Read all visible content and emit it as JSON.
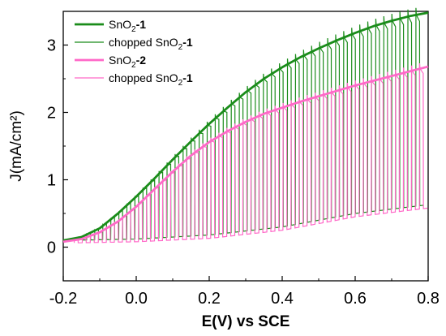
{
  "chart_data": {
    "type": "line",
    "xlabel": "E(V) vs SCE",
    "ylabel": "J(mA/cm²)",
    "xlim": [
      -0.2,
      0.8
    ],
    "ylim": [
      -0.5,
      3.5
    ],
    "xticks": [
      -0.2,
      0.0,
      0.2,
      0.4,
      0.6,
      0.8
    ],
    "xtick_labels": [
      "-0.2",
      "0.0",
      "0.2",
      "0.4",
      "0.6",
      "0.8"
    ],
    "yticks": [
      0,
      1,
      2,
      3
    ],
    "ytick_labels": [
      "0",
      "1",
      "2",
      "3"
    ],
    "grid": false,
    "legend_position": "top-left",
    "legend": [
      {
        "base": "SnO",
        "sub": "2",
        "suffix": "-1",
        "color": "#1a8c1a",
        "style": "thick"
      },
      {
        "base": "chopped SnO",
        "sub": "2",
        "suffix": "-1",
        "color": "#1a8c1a",
        "style": "thin"
      },
      {
        "base": "SnO",
        "sub": "2",
        "suffix": "-2",
        "color": "#ff69c8",
        "style": "thick"
      },
      {
        "base": "chopped SnO",
        "sub": "2",
        "suffix": "-1",
        "color": "#ff69c8",
        "style": "thin"
      }
    ],
    "series": [
      {
        "name": "SnO2-1",
        "color": "#1a8c1a",
        "style": "thick",
        "x": [
          -0.2,
          -0.15,
          -0.1,
          -0.05,
          0.0,
          0.05,
          0.1,
          0.15,
          0.2,
          0.25,
          0.3,
          0.35,
          0.4,
          0.45,
          0.5,
          0.55,
          0.6,
          0.65,
          0.7,
          0.75,
          0.8
        ],
        "y": [
          0.1,
          0.15,
          0.28,
          0.5,
          0.75,
          1.02,
          1.3,
          1.57,
          1.83,
          2.07,
          2.3,
          2.5,
          2.67,
          2.82,
          2.95,
          3.07,
          3.18,
          3.28,
          3.36,
          3.43,
          3.48
        ]
      },
      {
        "name": "chopped SnO2-1",
        "color": "#1a8c1a",
        "style": "thin",
        "dark_x": [
          -0.2,
          0.0,
          0.2,
          0.4,
          0.6,
          0.8
        ],
        "dark_y": [
          0.1,
          0.12,
          0.18,
          0.3,
          0.5,
          0.63
        ],
        "light_x": [
          -0.2,
          -0.15,
          -0.1,
          -0.05,
          0.0,
          0.05,
          0.1,
          0.15,
          0.2,
          0.25,
          0.3,
          0.35,
          0.4,
          0.45,
          0.5,
          0.55,
          0.6,
          0.65,
          0.7,
          0.75,
          0.8
        ],
        "light_y": [
          0.1,
          0.15,
          0.28,
          0.5,
          0.75,
          1.02,
          1.3,
          1.57,
          1.83,
          2.07,
          2.3,
          2.5,
          2.67,
          2.82,
          2.95,
          3.07,
          3.18,
          3.28,
          3.36,
          3.43,
          3.48
        ],
        "pulse_x_start": -0.18,
        "pulse_x_end": 0.79,
        "pulse_period": 0.022
      },
      {
        "name": "SnO2-2",
        "color": "#ff69c8",
        "style": "thick",
        "x": [
          -0.2,
          -0.15,
          -0.1,
          -0.05,
          0.0,
          0.05,
          0.1,
          0.15,
          0.2,
          0.25,
          0.3,
          0.35,
          0.4,
          0.45,
          0.5,
          0.55,
          0.6,
          0.65,
          0.7,
          0.75,
          0.8
        ],
        "y": [
          0.08,
          0.12,
          0.22,
          0.38,
          0.6,
          0.86,
          1.12,
          1.36,
          1.56,
          1.72,
          1.86,
          1.98,
          2.07,
          2.16,
          2.24,
          2.32,
          2.4,
          2.47,
          2.54,
          2.61,
          2.68
        ]
      },
      {
        "name": "chopped SnO2-1",
        "color": "#ff69c8",
        "style": "thin",
        "dark_x": [
          -0.2,
          0.0,
          0.2,
          0.4,
          0.6,
          0.8
        ],
        "dark_y": [
          0.06,
          0.08,
          0.13,
          0.25,
          0.45,
          0.58
        ],
        "light_x": [
          -0.2,
          -0.15,
          -0.1,
          -0.05,
          0.0,
          0.05,
          0.1,
          0.15,
          0.2,
          0.25,
          0.3,
          0.35,
          0.4,
          0.45,
          0.5,
          0.55,
          0.6,
          0.65,
          0.7,
          0.75,
          0.8
        ],
        "light_y": [
          0.08,
          0.12,
          0.22,
          0.38,
          0.6,
          0.86,
          1.12,
          1.36,
          1.56,
          1.72,
          1.86,
          1.98,
          2.07,
          2.16,
          2.24,
          2.32,
          2.4,
          2.47,
          2.54,
          2.61,
          2.68
        ],
        "pulse_x_start": -0.17,
        "pulse_x_end": 0.8,
        "pulse_period": 0.022
      }
    ]
  }
}
